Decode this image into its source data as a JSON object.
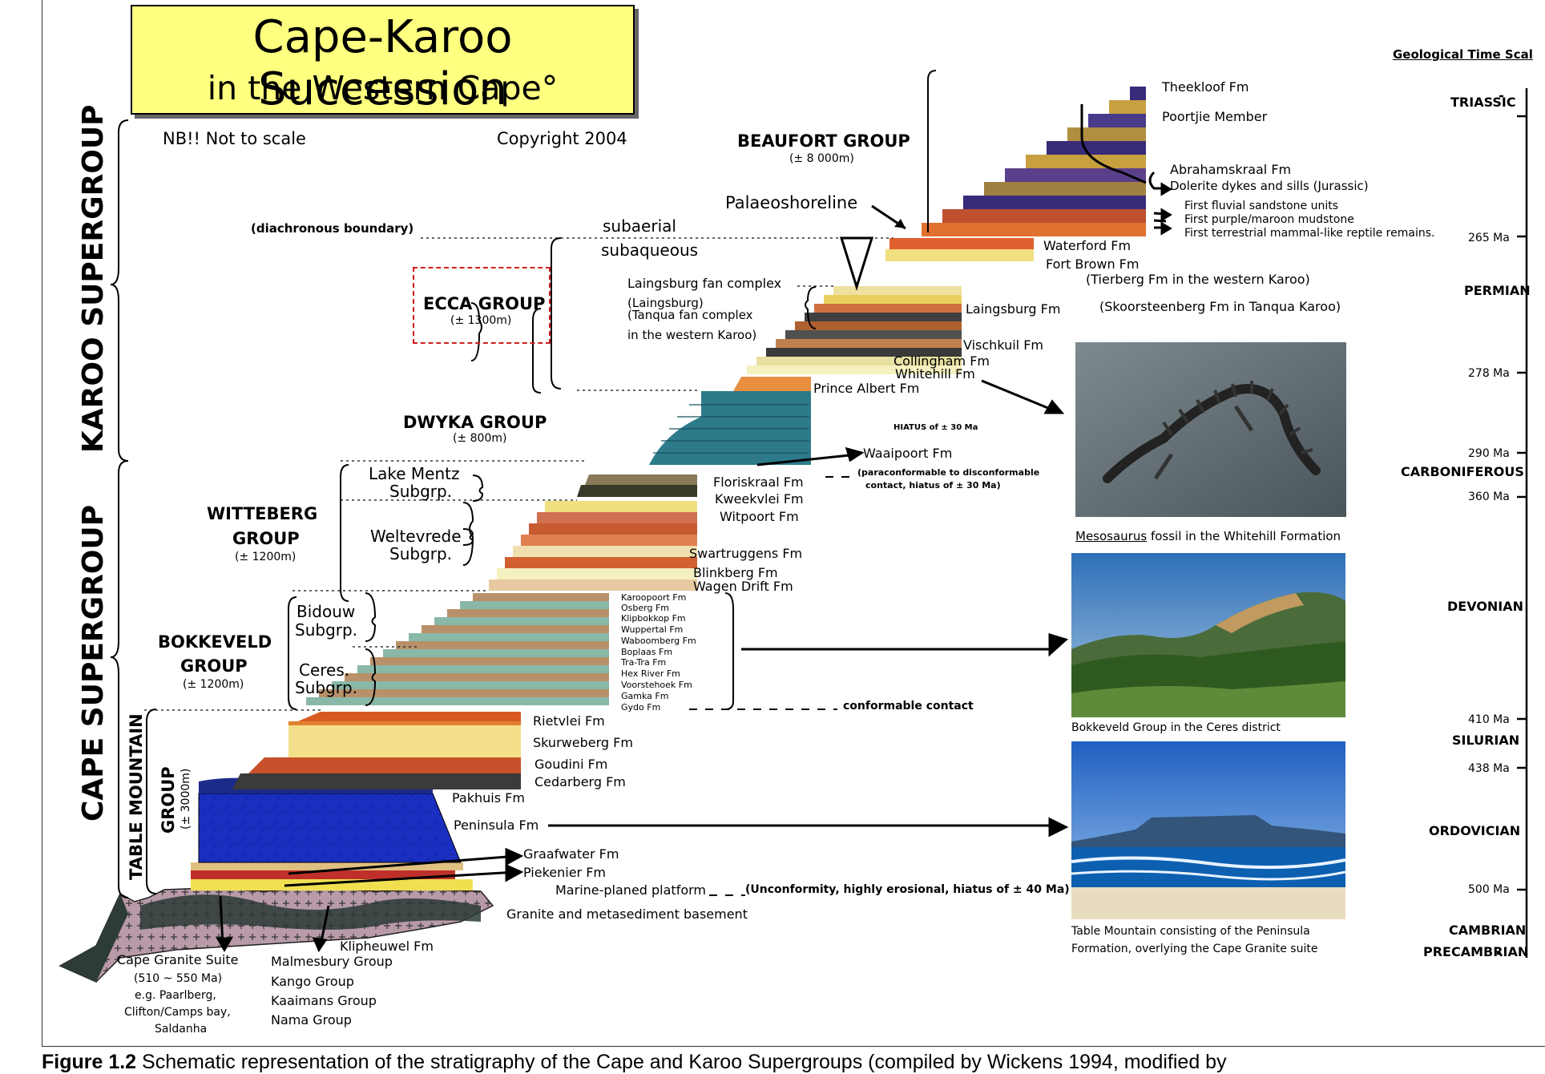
{
  "title": {
    "line1": "Cape-Karoo Succession",
    "line2": "in the Western Cape°"
  },
  "notes": {
    "scale": "NB!! Not to scale",
    "copyright": "Copyright 2004"
  },
  "supergroups": {
    "karoo": "KAROO SUPERGROUP",
    "cape": "CAPE SUPERGROUP"
  },
  "groups": {
    "beaufort": {
      "name": "BEAUFORT GROUP",
      "thickness": "(± 8 000m)"
    },
    "ecca": {
      "name": "ECCA GROUP",
      "thickness": "(± 1300m)"
    },
    "dwyka": {
      "name": "DWYKA GROUP",
      "thickness": "(± 800m)"
    },
    "witteberg": {
      "name1": "WITTEBERG",
      "name2": "GROUP",
      "thickness": "(± 1200m)"
    },
    "bokkeveld": {
      "name1": "BOKKEVELD",
      "name2": "GROUP",
      "thickness": "(± 1200m)"
    },
    "tablemountain": {
      "name": "TABLE MOUNTAIN",
      "name2": "GROUP",
      "thickness": "(± 3000m)"
    }
  },
  "subgroups": {
    "lakementz": {
      "l1": "Lake Mentz",
      "l2": "Subgrp."
    },
    "weltevrede": {
      "l1": "Weltevrede",
      "l2": "Subgrp."
    },
    "bidouw": {
      "l1": "Bidouw",
      "l2": "Subgrp."
    },
    "ceres": {
      "l1": "Ceres.",
      "l2": "Subgrp."
    }
  },
  "boundaries": {
    "diachronous": "(diachronous boundary)",
    "subaerial": "subaerial",
    "subaqueous": "subaqueous",
    "palaeoshoreline": "Palaeoshoreline",
    "laingsburg_fan": "Laingsburg fan complex",
    "laingsburg_paren": "(Laingsburg)",
    "tanqua_fan": "(Tanqua fan complex",
    "tanqua_fan2": "in the western Karoo)",
    "hiatus30": "HIATUS of ± 30 Ma",
    "paraconf1": "(paraconformable to disconformable",
    "paraconf2": "contact, hiatus of ± 30 Ma)",
    "conformable": "conformable contact",
    "unconformity": "(Unconformity, highly erosional, hiatus of ± 40 Ma)"
  },
  "formations": {
    "theekloof": "Theekloof Fm",
    "poortjie": "Poortjie Member",
    "abrahamskraal": "Abrahamskraal Fm",
    "dolerite": "Dolerite dykes and sills (Jurassic)",
    "fluvial": "First fluvial sandstone units",
    "purple": "First purple/maroon mudstone",
    "mammal": "First terrestrial mammal-like reptile remains.",
    "waterford": "Waterford Fm",
    "fortbrown": "Fort Brown Fm",
    "tierberg": "(Tierberg Fm in the western Karoo)",
    "laingsburg": "Laingsburg Fm",
    "skoorsteenberg": "(Skoorsteenberg Fm in Tanqua Karoo)",
    "vischkuil": "Vischkuil Fm",
    "collingham": "Collingham Fm",
    "whitehill": "Whitehill Fm",
    "princealbert": "Prince Albert Fm",
    "waaipoort": "Waaipoort Fm",
    "floriskraal": "Floriskraal Fm",
    "kweekvlei": "Kweekvlei Fm",
    "witpoort": "Witpoort Fm",
    "swartruggens": "Swartruggens Fm",
    "blinkberg": "Blinkberg Fm",
    "wagendrift": "Wagen Drift Fm",
    "karoopoort": "Karoopoort Fm",
    "osberg": "Osberg Fm",
    "klipbokkop": "Klipbokkop Fm",
    "wuppertal": "Wuppertal Fm",
    "waboomberg": "Waboomberg Fm",
    "boplaas": "Boplaas Fm",
    "tratra": "Tra-Tra Fm",
    "hexriver": "Hex River Fm",
    "voorstehoek": "Voorstehoek Fm",
    "gamka": "Gamka Fm",
    "gydo": "Gydo Fm",
    "rietvlei": "Rietvlei Fm",
    "skurweberg": "Skurweberg Fm",
    "goudini": "Goudini Fm",
    "cedarberg": "Cedarberg Fm",
    "pakhuis": "Pakhuis Fm",
    "peninsula": "Peninsula Fm",
    "graafwater": "Graafwater Fm",
    "piekenier": "Piekenier Fm",
    "marineplaned": "Marine-planed platform",
    "basement": "Granite and metasediment basement",
    "klipheuwel": "Klipheuwel Fm"
  },
  "basement_labels": {
    "capegranite": "Cape Granite Suite",
    "granite_age": "(510 ~ 550 Ma)",
    "eg": "e.g. Paarlberg,",
    "clifton": "Clifton/Camps bay,",
    "saldanha": "Saldanha",
    "malmesbury": "Malmesbury Group",
    "kango": "Kango Group",
    "kaaimans": "Kaaimans Group",
    "nama": "Nama Group"
  },
  "photos": {
    "mesosaurus_caption_italic": "Mesosaurus",
    "mesosaurus_caption_rest": " fossil in the Whitehill Formation",
    "bokkeveld_caption": "Bokkeveld Group in the Ceres district",
    "tablemountain_caption1": "Table Mountain consisting of the Peninsula",
    "tablemountain_caption2": "Formation, overlying the Cape Granite suite"
  },
  "timescale": {
    "heading": "Geological Time Scal",
    "periods": [
      "TRIASSIC",
      "PERMIAN",
      "CARBONIFEROUS",
      "DEVONIAN",
      "SILURIAN",
      "ORDOVICIAN",
      "CAMBRIAN",
      "PRECAMBRIAN"
    ],
    "ages": [
      "265 Ma",
      "278 Ma",
      "290 Ma",
      "360 Ma",
      "410 Ma",
      "438 Ma",
      "500 Ma"
    ]
  },
  "figure_caption": {
    "bold": "Figure 1.2",
    "rest": " Schematic representation of the stratigraphy of the Cape and Karoo Supergroups (compiled by Wickens 1994, modified by"
  },
  "colors": {
    "title_bg": "#ffff80",
    "ecca_dash": "#d02020",
    "peninsula_blue": "#1a2fc0",
    "teal": "#2d7a8a",
    "purple": "#5a3f8a"
  }
}
